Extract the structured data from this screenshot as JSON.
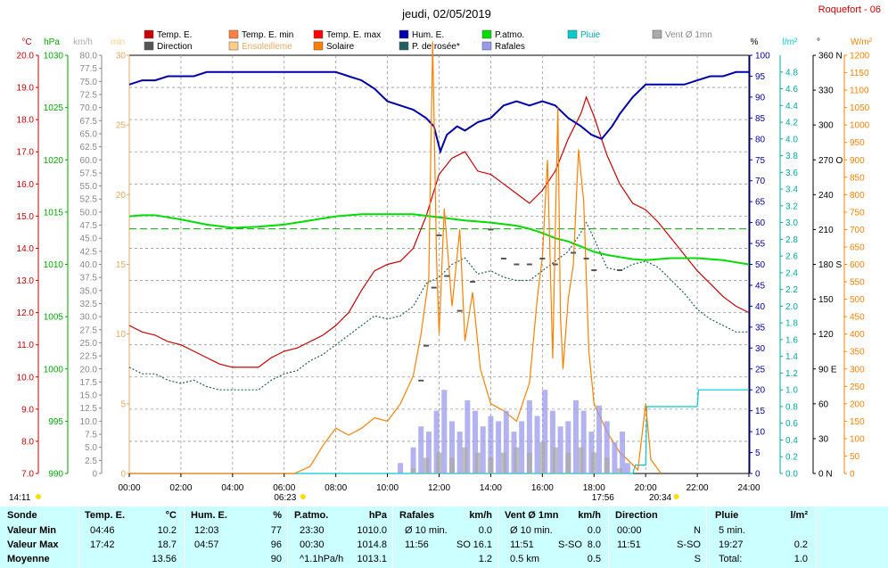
{
  "header": {
    "title": "jeudi, 02/05/2019",
    "station": "Roquefort - 06"
  },
  "legend": [
    {
      "label": "Temp. E.",
      "color": "#cc0000"
    },
    {
      "label": "Temp. E. min",
      "color": "#ff8040"
    },
    {
      "label": "Temp. E. max",
      "color": "#ff0000"
    },
    {
      "label": "Hum. E.",
      "color": "#0000aa"
    },
    {
      "label": "P.atmo.",
      "color": "#00dd00"
    },
    {
      "label": "Pluie",
      "color": "#00cccc"
    },
    {
      "label": "Vent Ø 1mn",
      "color": "#aaaaaa"
    },
    {
      "label": "Direction",
      "color": "#555555"
    },
    {
      "label": "Ensoleilleme",
      "color": "#ffcc88"
    },
    {
      "label": "Solaire",
      "color": "#ff8000"
    },
    {
      "label": "P. de rosée*",
      "color": "#206060"
    },
    {
      "label": "Rafales",
      "color": "#9999ee"
    }
  ],
  "axis_units": {
    "temp": "°C",
    "press": "hPa",
    "wind": "km/h",
    "sun": "min",
    "hum": "%",
    "rain": "l/m²",
    "dir": "°",
    "solar": "W/m²"
  },
  "chart_data": {
    "type": "line",
    "x_axis": {
      "ticks": [
        "00:00",
        "02:00",
        "04:00",
        "06:00",
        "08:00",
        "10:00",
        "12:00",
        "14:00",
        "16:00",
        "18:00",
        "20:00",
        "22:00",
        "24:00"
      ],
      "range_h": [
        0,
        24
      ]
    },
    "axes": {
      "temp_c": {
        "range": [
          7.0,
          20.0
        ],
        "ticks": [
          "7.0",
          "8.0",
          "9.0",
          "10.0",
          "11.0",
          "12.0",
          "13.0",
          "14.0",
          "15.0",
          "16.0",
          "17.0",
          "18.0",
          "19.0",
          "20.0"
        ]
      },
      "pressure_hpa": {
        "range": [
          990,
          1030
        ],
        "ticks": [
          "990",
          "995",
          "1000",
          "1005",
          "1010",
          "1015",
          "1020",
          "1025",
          "1030"
        ]
      },
      "wind_kmh": {
        "range": [
          0,
          80
        ],
        "ticks": [
          "0",
          "2.5",
          "5.0",
          "7.5",
          "10.0",
          "12.5",
          "15.0",
          "17.5",
          "20.0",
          "22.5",
          "25.0",
          "27.5",
          "30.0",
          "32.5",
          "35.0",
          "37.5",
          "40.0",
          "42.5",
          "45.0",
          "47.5",
          "50.0",
          "52.5",
          "55.0",
          "57.5",
          "60.0",
          "62.5",
          "65.0",
          "67.5",
          "70.0",
          "72.5",
          "75.0",
          "77.5",
          "80.0"
        ]
      },
      "sun_min": {
        "range": [
          0,
          30
        ],
        "ticks": [
          "0",
          "5",
          "10",
          "15",
          "20",
          "25",
          "30"
        ]
      },
      "humidity_pct": {
        "range": [
          0,
          100
        ],
        "ticks": [
          "0",
          "5",
          "10",
          "15",
          "20",
          "25",
          "30",
          "35",
          "40",
          "45",
          "50",
          "55",
          "60",
          "65",
          "70",
          "75",
          "80",
          "85",
          "90",
          "95",
          "100"
        ]
      },
      "rain_lm2": {
        "range": [
          0,
          5.0
        ],
        "ticks": [
          "0.0",
          "0.2",
          "0.4",
          "0.6",
          "0.8",
          "1.0",
          "1.2",
          "1.4",
          "1.6",
          "1.8",
          "2.0",
          "2.2",
          "2.4",
          "2.6",
          "2.8",
          "3.0",
          "3.2",
          "3.4",
          "3.6",
          "3.8",
          "4.0",
          "4.2",
          "4.4",
          "4.6",
          "4.8"
        ]
      },
      "direction_deg": {
        "range": [
          0,
          360
        ],
        "ticks": [
          "0 N",
          "30",
          "60",
          "90 E",
          "120",
          "150",
          "180 S",
          "210",
          "240",
          "270 O",
          "300",
          "330",
          "360 N"
        ]
      },
      "solar_wm2": {
        "range": [
          0,
          1200
        ],
        "ticks": [
          "0",
          "50",
          "100",
          "150",
          "200",
          "250",
          "300",
          "350",
          "400",
          "450",
          "500",
          "550",
          "600",
          "650",
          "700",
          "750",
          "800",
          "850",
          "900",
          "950",
          "1000",
          "1050",
          "1100",
          "1150",
          "1200"
        ]
      }
    },
    "series": [
      {
        "name": "Temp. E.",
        "axis": "temp_c",
        "color": "#cc0000",
        "x": [
          0,
          0.5,
          1,
          1.5,
          2,
          2.5,
          3,
          3.5,
          4,
          4.5,
          5,
          5.5,
          6,
          6.5,
          7,
          7.5,
          8,
          8.5,
          9,
          9.5,
          10,
          10.5,
          11,
          11.5,
          12,
          12.5,
          13,
          13.5,
          14,
          14.5,
          15,
          15.5,
          16,
          16.5,
          17,
          17.5,
          17.7,
          18,
          18.5,
          19,
          19.5,
          20,
          20.5,
          21,
          21.5,
          22,
          22.5,
          23,
          23.5,
          24
        ],
        "y": [
          11.6,
          11.4,
          11.3,
          11.1,
          11.0,
          10.8,
          10.6,
          10.4,
          10.3,
          10.3,
          10.3,
          10.6,
          10.8,
          10.9,
          11.1,
          11.3,
          11.6,
          12.0,
          12.7,
          13.3,
          13.5,
          13.6,
          14.0,
          15.0,
          16.3,
          16.8,
          17.0,
          16.4,
          16.3,
          16.0,
          15.7,
          15.4,
          15.8,
          16.4,
          17.4,
          18.2,
          18.7,
          18.1,
          16.9,
          16.0,
          15.4,
          15.2,
          14.8,
          14.3,
          13.8,
          13.3,
          12.9,
          12.5,
          12.2,
          12.0
        ]
      },
      {
        "name": "Hum. E.",
        "axis": "humidity_pct",
        "color": "#0000aa",
        "x": [
          0,
          0.5,
          1,
          1.5,
          2,
          2.5,
          3,
          4,
          5,
          6,
          7,
          8,
          8.5,
          9,
          9.5,
          10,
          10.5,
          11,
          11.5,
          11.8,
          12.05,
          12.3,
          12.7,
          13,
          13.5,
          14,
          14.5,
          15,
          15.5,
          16,
          16.5,
          17,
          17.5,
          17.9,
          18.3,
          18.7,
          19,
          19.5,
          20,
          20.5,
          21,
          21.5,
          22,
          22.5,
          23,
          23.5,
          24
        ],
        "y": [
          93,
          94,
          94,
          95,
          95,
          95,
          96,
          96,
          96,
          96,
          96,
          96,
          95,
          94,
          92,
          89,
          88,
          87,
          85,
          83,
          77,
          81,
          83,
          82,
          84,
          85,
          88,
          89,
          88,
          89,
          88,
          85,
          83,
          81,
          80,
          83,
          86,
          90,
          93,
          93,
          93,
          93,
          94,
          95,
          95,
          96,
          96
        ]
      },
      {
        "name": "P. de rosée*",
        "axis": "temp_c",
        "color": "#206060",
        "x": [
          0,
          0.5,
          1,
          1.5,
          2,
          2.5,
          3,
          3.5,
          4,
          4.5,
          5,
          5.5,
          6,
          6.5,
          7,
          7.5,
          8,
          8.5,
          9,
          9.5,
          10,
          10.5,
          11,
          11.5,
          12,
          12.5,
          13,
          13.5,
          14,
          14.5,
          15,
          15.5,
          16,
          16.5,
          17,
          17.5,
          17.7,
          18,
          18.5,
          19,
          19.5,
          20,
          20.5,
          21,
          21.5,
          22,
          22.5,
          23,
          23.5,
          24
        ],
        "y": [
          10.3,
          10.1,
          10.1,
          9.9,
          9.8,
          9.9,
          9.7,
          9.6,
          9.6,
          9.6,
          9.6,
          9.9,
          10.1,
          10.2,
          10.5,
          10.7,
          11.0,
          11.3,
          11.6,
          11.9,
          11.8,
          11.9,
          12.2,
          12.9,
          13.1,
          13.5,
          13.7,
          13.2,
          13.3,
          13.1,
          13.0,
          13.0,
          13.3,
          13.6,
          13.9,
          14.5,
          14.8,
          14.3,
          13.4,
          13.3,
          13.5,
          13.6,
          13.4,
          13.0,
          12.6,
          12.1,
          11.8,
          11.6,
          11.4,
          11.4
        ]
      },
      {
        "name": "P.atmo.",
        "axis": "pressure_hpa",
        "color": "#00dd00",
        "x": [
          0,
          0.5,
          1,
          1.5,
          2,
          3,
          4,
          5,
          6,
          7,
          8,
          9,
          10,
          11,
          12,
          13,
          14,
          15,
          15.5,
          16,
          16.5,
          17,
          17.5,
          18,
          18.5,
          19,
          19.5,
          20,
          20.5,
          21,
          21.5,
          22,
          22.5,
          23,
          23.5,
          24
        ],
        "y": [
          1014.6,
          1014.7,
          1014.7,
          1014.5,
          1014.3,
          1013.8,
          1013.5,
          1013.6,
          1013.8,
          1014.2,
          1014.6,
          1014.8,
          1014.8,
          1014.8,
          1014.5,
          1014.2,
          1014.0,
          1013.7,
          1013.4,
          1013.0,
          1012.5,
          1012.2,
          1011.7,
          1011.2,
          1010.9,
          1010.7,
          1010.5,
          1010.4,
          1010.5,
          1010.6,
          1010.6,
          1010.6,
          1010.5,
          1010.4,
          1010.2,
          1010.0
        ]
      },
      {
        "name": "Pluie",
        "axis": "rain_lm2",
        "color": "#00cccc",
        "x": [
          0,
          19.5,
          19.6,
          20.0,
          20.05,
          22.0,
          22.05,
          24
        ],
        "y": [
          0,
          0,
          0.1,
          0.1,
          0.8,
          0.8,
          1.0,
          1.0
        ]
      },
      {
        "name": "Solaire",
        "axis": "solar_wm2",
        "color": "#ff8000",
        "x": [
          0,
          6.4,
          7,
          7.5,
          8,
          8.5,
          9,
          9.5,
          10,
          10.5,
          11,
          11.3,
          11.6,
          11.75,
          11.9,
          12.0,
          12.2,
          12.5,
          12.8,
          13,
          13.3,
          13.6,
          14,
          14.5,
          15,
          15.5,
          15.8,
          16,
          16.2,
          16.4,
          16.6,
          16.7,
          16.8,
          17.0,
          17.2,
          17.4,
          17.6,
          17.8,
          18.0,
          18.5,
          19,
          19.3,
          19.7,
          20.0,
          20.2,
          20.6
        ],
        "y": [
          0,
          0,
          20,
          80,
          130,
          110,
          130,
          160,
          150,
          200,
          280,
          400,
          560,
          1240,
          620,
          400,
          760,
          480,
          700,
          380,
          520,
          300,
          200,
          180,
          150,
          260,
          500,
          620,
          900,
          330,
          1050,
          450,
          300,
          500,
          600,
          930,
          780,
          350,
          200,
          120,
          60,
          40,
          10,
          200,
          40,
          0
        ]
      },
      {
        "name": "Direction",
        "axis": "direction_deg",
        "color": "#555555",
        "x": [
          11.3,
          11.5,
          11.8,
          12.0,
          12.3,
          12.8,
          13.3,
          14.0,
          14.5,
          15.0,
          15.5,
          16.0,
          16.5,
          17.2,
          17.7,
          18.0,
          19.0
        ],
        "y": [
          80,
          110,
          160,
          205,
          170,
          140,
          165,
          210,
          185,
          180,
          180,
          185,
          180,
          190,
          185,
          175,
          175
        ]
      },
      {
        "name": "Rafales",
        "axis": "wind_kmh",
        "color": "#9999ee",
        "x": [
          10.5,
          11.0,
          11.3,
          11.6,
          11.9,
          12.2,
          12.5,
          12.8,
          13.1,
          13.4,
          13.7,
          14.0,
          14.3,
          14.6,
          14.9,
          15.2,
          15.5,
          15.8,
          16.1,
          16.4,
          16.7,
          17.0,
          17.3,
          17.6,
          17.9,
          18.2,
          18.5,
          18.8,
          19.1,
          19.3
        ],
        "y": [
          2,
          5,
          9,
          8,
          12,
          16,
          10,
          8,
          14,
          12,
          9,
          11,
          10,
          12,
          8,
          10,
          14,
          11,
          16,
          12,
          9,
          10,
          14,
          12,
          8,
          13,
          10,
          6,
          8,
          2
        ]
      },
      {
        "name": "Vent Ø 1mn",
        "axis": "wind_kmh",
        "color": "#aaaaaa",
        "x": [
          11.0,
          11.5,
          12.0,
          12.5,
          13.0,
          13.5,
          14.0,
          14.5,
          15.0,
          15.5,
          16.0,
          16.5,
          17.0,
          17.5,
          18.0,
          18.5,
          19.0
        ],
        "y": [
          1,
          3,
          4,
          3,
          5,
          4,
          3,
          4,
          5,
          4,
          6,
          5,
          4,
          5,
          4,
          3,
          1
        ]
      }
    ],
    "reference_lines": [
      {
        "axis": "humidity_pct",
        "value": 58.5,
        "color": "#00aa00",
        "dashed": true
      }
    ],
    "sun_markers": {
      "sunrise": "06:23",
      "sunset": "20:34",
      "daylight": "14:11",
      "marker": "17:56"
    }
  },
  "summary": {
    "headers": [
      "Sonde",
      "Temp. E.",
      "°C",
      "Hum. E.",
      "%",
      "P.atmo.",
      "hPa",
      "Rafales",
      "km/h",
      "Vent Ø 1mn",
      "km/h",
      "Direction",
      "Pluie",
      "l/m²"
    ],
    "rows": [
      {
        "label": "Valeur Min",
        "t_time": "04:46",
        "t_val": "10.2",
        "h_time": "12:03",
        "h_val": "77",
        "p_time": "23:30",
        "p_val": "1010.0",
        "r_desc": "Ø 10 min.",
        "r_val": "0.0",
        "v_desc": "Ø 10 min.",
        "v_val": "0.0",
        "d_time": "00:00",
        "d_val": "N",
        "pl_desc": "5 min.",
        "pl_val": ""
      },
      {
        "label": "Valeur Max",
        "t_time": "17:42",
        "t_val": "18.7",
        "h_time": "04:57",
        "h_val": "96",
        "p_time": "00:30",
        "p_val": "1014.8",
        "r_desc": "11:56",
        "r_dir": "SO",
        "r_val": "16.1",
        "v_desc": "11:51",
        "v_dir": "S-SO",
        "v_val": "8.0",
        "d_time": "11:51",
        "d_val": "S-SO",
        "pl_desc": "19:27",
        "pl_val": "0.2"
      },
      {
        "label": "Moyenne",
        "t_time": "",
        "t_val": "13.56",
        "h_time": "",
        "h_val": "90",
        "p_time": "^1.1hPa/h",
        "p_val": "1013.1",
        "r_desc": "",
        "r_val": "1.2",
        "v_desc": "0.5 km",
        "v_val": "0.5",
        "d_time": "",
        "d_val": "S",
        "pl_desc": "Total:",
        "pl_val": "1.0"
      }
    ]
  }
}
